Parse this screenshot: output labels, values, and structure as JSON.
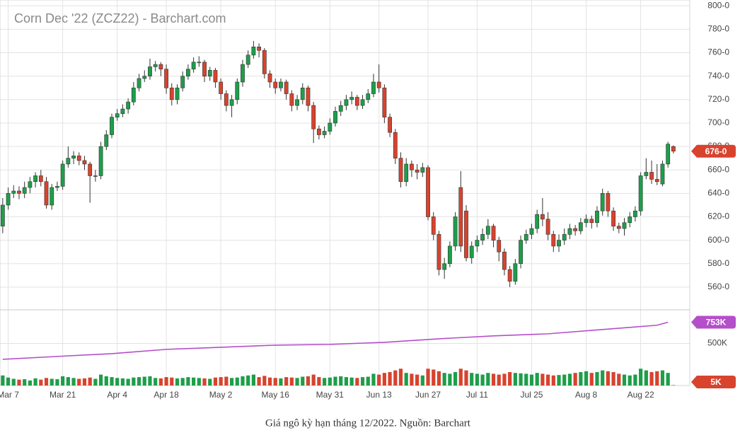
{
  "chart_data": {
    "type": "candlestick",
    "title": "Corn Dec '22 (ZCZ22) - Barchart.com",
    "caption": "Giá ngô kỳ hạn tháng 12/2022. Nguồn: Barchart",
    "up_color": "#1e9e4a",
    "down_color": "#d8432e",
    "oi_color": "#b44fc9",
    "ylim": [
      540,
      805
    ],
    "yticks": [
      {
        "value": 560,
        "label": "560-0"
      },
      {
        "value": 580,
        "label": "580-0"
      },
      {
        "value": 600,
        "label": "600-0"
      },
      {
        "value": 620,
        "label": "620-0"
      },
      {
        "value": 640,
        "label": "640-0"
      },
      {
        "value": 660,
        "label": "660-0"
      },
      {
        "value": 680,
        "label": "680-0"
      },
      {
        "value": 700,
        "label": "700-0"
      },
      {
        "value": 720,
        "label": "720-0"
      },
      {
        "value": 740,
        "label": "740-0"
      },
      {
        "value": 760,
        "label": "760-0"
      },
      {
        "value": 780,
        "label": "780-0"
      },
      {
        "value": 800,
        "label": "800-0"
      }
    ],
    "y2lim": [
      0,
      900
    ],
    "y2ticks": [
      {
        "value": 500,
        "label": "500K"
      }
    ],
    "xlim": [
      -0.5,
      126
    ],
    "xticks": [
      {
        "value": 1,
        "label": "Mar 7"
      },
      {
        "value": 11,
        "label": "Mar 21"
      },
      {
        "value": 21,
        "label": "Apr 4"
      },
      {
        "value": 30,
        "label": "Apr 18"
      },
      {
        "value": 40,
        "label": "May 2"
      },
      {
        "value": 50,
        "label": "May 16"
      },
      {
        "value": 60,
        "label": "May 31"
      },
      {
        "value": 69,
        "label": "Jun 13"
      },
      {
        "value": 78,
        "label": "Jun 27"
      },
      {
        "value": 87,
        "label": "Jul 11"
      },
      {
        "value": 97,
        "label": "Jul 25"
      },
      {
        "value": 107,
        "label": "Aug 8"
      },
      {
        "value": 117,
        "label": "Aug 22"
      }
    ],
    "grid": true,
    "open": [
      612,
      630,
      640,
      642,
      640,
      645,
      650,
      655,
      650,
      630,
      645,
      646,
      665,
      670,
      672,
      668,
      665,
      655,
      655,
      680,
      690,
      705,
      708,
      712,
      718,
      730,
      738,
      740,
      748,
      750,
      746,
      730,
      720,
      730,
      740,
      746,
      752,
      752,
      740,
      745,
      735,
      725,
      715,
      720,
      735,
      750,
      758,
      765,
      762,
      742,
      735,
      730,
      735,
      725,
      715,
      720,
      730,
      715,
      695,
      690,
      693,
      700,
      710,
      715,
      720,
      722,
      715,
      720,
      725,
      735,
      730,
      705,
      692,
      670,
      650,
      665,
      660,
      658,
      662,
      620,
      605,
      575,
      580,
      595,
      645,
      625,
      585,
      595,
      600,
      605,
      612,
      600,
      590,
      575,
      565,
      580,
      600,
      605,
      610,
      622,
      618,
      605,
      595,
      600,
      605,
      610,
      608,
      615,
      618,
      615,
      625,
      640,
      625,
      612,
      610,
      615,
      620,
      625,
      655,
      658,
      652,
      648,
      665,
      680
    ],
    "high": [
      636,
      645,
      647,
      646,
      650,
      654,
      658,
      660,
      654,
      648,
      650,
      668,
      680,
      676,
      675,
      672,
      667,
      660,
      684,
      694,
      708,
      712,
      716,
      721,
      735,
      742,
      745,
      755,
      753,
      752,
      750,
      734,
      733,
      744,
      750,
      756,
      757,
      754,
      748,
      747,
      738,
      728,
      724,
      738,
      754,
      762,
      770,
      768,
      764,
      745,
      738,
      738,
      737,
      728,
      724,
      734,
      732,
      718,
      698,
      697,
      704,
      714,
      719,
      724,
      727,
      724,
      724,
      729,
      742,
      750,
      733,
      708,
      695,
      675,
      670,
      668,
      665,
      666,
      664,
      624,
      608,
      585,
      599,
      624,
      659,
      630,
      599,
      604,
      610,
      618,
      614,
      603,
      593,
      578,
      584,
      604,
      609,
      614,
      626,
      636,
      624,
      608,
      605,
      610,
      614,
      613,
      619,
      622,
      621,
      629,
      644,
      642,
      628,
      615,
      619,
      624,
      629,
      658,
      670,
      668,
      665,
      668,
      684,
      681
    ],
    "low": [
      606,
      626,
      636,
      635,
      636,
      640,
      645,
      646,
      627,
      626,
      642,
      643,
      662,
      665,
      664,
      660,
      632,
      650,
      652,
      677,
      687,
      702,
      705,
      708,
      715,
      727,
      735,
      737,
      744,
      740,
      725,
      715,
      716,
      727,
      737,
      743,
      748,
      735,
      736,
      730,
      720,
      710,
      705,
      716,
      731,
      747,
      755,
      756,
      738,
      730,
      725,
      727,
      720,
      710,
      711,
      716,
      710,
      683,
      686,
      687,
      690,
      697,
      706,
      711,
      716,
      711,
      712,
      717,
      722,
      726,
      700,
      688,
      665,
      645,
      646,
      654,
      652,
      654,
      617,
      600,
      570,
      567,
      577,
      591,
      590,
      582,
      580,
      590,
      596,
      601,
      594,
      582,
      570,
      560,
      562,
      576,
      597,
      601,
      606,
      612,
      600,
      590,
      590,
      596,
      601,
      604,
      605,
      611,
      610,
      611,
      621,
      620,
      608,
      606,
      604,
      611,
      616,
      621,
      652,
      648,
      647,
      646,
      662,
      674
    ],
    "close": [
      630,
      640,
      642,
      640,
      645,
      650,
      655,
      650,
      630,
      645,
      646,
      665,
      670,
      672,
      668,
      665,
      655,
      655,
      680,
      690,
      705,
      708,
      712,
      718,
      730,
      738,
      740,
      748,
      750,
      746,
      730,
      720,
      730,
      740,
      746,
      752,
      752,
      740,
      745,
      735,
      725,
      715,
      720,
      735,
      750,
      758,
      765,
      762,
      742,
      735,
      730,
      735,
      725,
      715,
      720,
      730,
      715,
      695,
      690,
      693,
      700,
      710,
      715,
      720,
      722,
      715,
      720,
      725,
      735,
      730,
      705,
      692,
      670,
      650,
      665,
      660,
      658,
      662,
      620,
      605,
      575,
      580,
      595,
      620,
      595,
      585,
      595,
      600,
      605,
      612,
      600,
      590,
      575,
      565,
      580,
      600,
      605,
      610,
      622,
      618,
      605,
      595,
      600,
      605,
      610,
      608,
      615,
      618,
      615,
      625,
      640,
      625,
      612,
      610,
      615,
      620,
      625,
      655,
      658,
      652,
      650,
      665,
      682,
      676
    ],
    "last_price_label": "676-0",
    "volume": [
      120,
      95,
      80,
      70,
      75,
      60,
      85,
      70,
      90,
      80,
      75,
      110,
      100,
      90,
      80,
      85,
      95,
      80,
      130,
      110,
      100,
      90,
      85,
      80,
      95,
      100,
      105,
      110,
      90,
      85,
      100,
      95,
      85,
      90,
      100,
      95,
      90,
      85,
      80,
      95,
      100,
      105,
      90,
      95,
      110,
      120,
      130,
      100,
      115,
      95,
      90,
      85,
      100,
      95,
      90,
      105,
      110,
      130,
      100,
      90,
      95,
      105,
      110,
      100,
      95,
      90,
      100,
      105,
      140,
      130,
      150,
      160,
      180,
      200,
      150,
      140,
      130,
      120,
      200,
      190,
      170,
      150,
      140,
      160,
      200,
      180,
      150,
      140,
      130,
      150,
      140,
      130,
      140,
      160,
      150,
      145,
      140,
      130,
      150,
      140,
      130,
      120,
      125,
      130,
      140,
      150,
      160,
      170,
      150,
      160,
      180,
      170,
      160,
      140,
      130,
      120,
      130,
      200,
      180,
      160,
      170,
      180,
      150,
      5
    ],
    "volume_last_label": "5K",
    "oi_x": [
      0,
      10,
      20,
      30,
      40,
      50,
      60,
      70,
      80,
      90,
      100,
      110,
      115,
      120,
      122
    ],
    "oi": [
      312,
      346,
      379,
      430,
      455,
      480,
      489,
      514,
      556,
      590,
      615,
      666,
      691,
      717,
      753
    ],
    "oi_last_label": "753K"
  }
}
